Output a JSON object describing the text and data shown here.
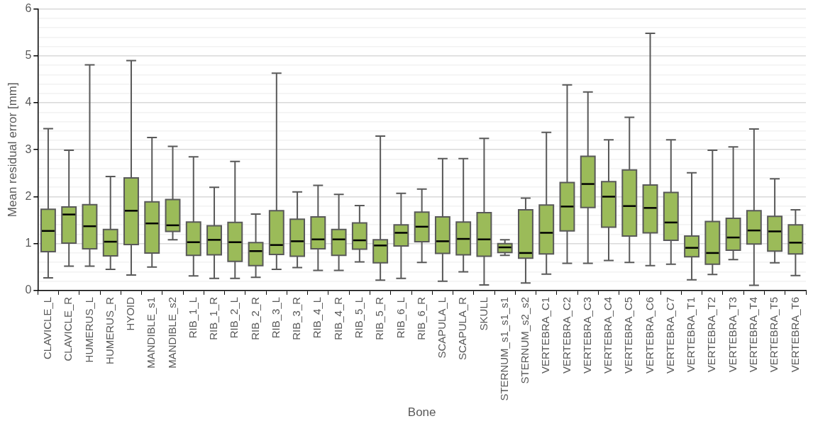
{
  "chart_data": {
    "type": "box",
    "xlabel": "Bone",
    "ylabel": "Mean residual error [mm]",
    "color": "#9bbb59",
    "categories": [
      "CLAVICLE_L",
      "CLAVICLE_R",
      "HUMERUS_L",
      "HUMERUS_R",
      "HYOID",
      "MANDIBLE_s1",
      "MANDIBLE_s2",
      "RIB_1_L",
      "RIB_1_R",
      "RIB_2_L",
      "RIB_2_R",
      "RIB_3_L",
      "RIB_3_R",
      "RIB_4_L",
      "RIB_4_R",
      "RIB_5_L",
      "RIB_5_R",
      "RIB_6_L",
      "RIB_6_R",
      "SCAPULA_L",
      "SCAPULA_R",
      "SKULL",
      "STERNUM_s1_s1_s1",
      "STERNUM_s2_s2",
      "VERTEBRA_C1",
      "VERTEBRA_C2",
      "VERTEBRA_C3",
      "VERTEBRA_C4",
      "VERTEBRA_C5",
      "VERTEBRA_C6",
      "VERTEBRA_C7",
      "VERTEBRA_T1",
      "VERTEBRA_T2",
      "VERTEBRA_T3",
      "VERTEBRA_T4",
      "VERTEBRA_T5",
      "VERTEBRA_T6"
    ],
    "boxes": [
      {
        "low": 0.27,
        "q1": 0.83,
        "median": 1.27,
        "q3": 1.73,
        "high": 3.45
      },
      {
        "low": 0.52,
        "q1": 1.01,
        "median": 1.62,
        "q3": 1.78,
        "high": 2.99
      },
      {
        "low": 0.52,
        "q1": 0.89,
        "median": 1.37,
        "q3": 1.83,
        "high": 4.81
      },
      {
        "low": 0.45,
        "q1": 0.74,
        "median": 1.04,
        "q3": 1.3,
        "high": 2.43
      },
      {
        "low": 0.33,
        "q1": 0.98,
        "median": 1.7,
        "q3": 2.4,
        "high": 4.9
      },
      {
        "low": 0.5,
        "q1": 0.8,
        "median": 1.43,
        "q3": 1.89,
        "high": 3.26
      },
      {
        "low": 1.08,
        "q1": 1.26,
        "median": 1.39,
        "q3": 1.94,
        "high": 3.07
      },
      {
        "low": 0.31,
        "q1": 0.75,
        "median": 1.03,
        "q3": 1.46,
        "high": 2.85
      },
      {
        "low": 0.26,
        "q1": 0.76,
        "median": 1.08,
        "q3": 1.38,
        "high": 2.2
      },
      {
        "low": 0.26,
        "q1": 0.62,
        "median": 1.03,
        "q3": 1.45,
        "high": 2.75
      },
      {
        "low": 0.28,
        "q1": 0.53,
        "median": 0.84,
        "q3": 1.02,
        "high": 1.63
      },
      {
        "low": 0.45,
        "q1": 0.77,
        "median": 0.97,
        "q3": 1.7,
        "high": 4.63
      },
      {
        "low": 0.49,
        "q1": 0.73,
        "median": 1.05,
        "q3": 1.52,
        "high": 2.1
      },
      {
        "low": 0.43,
        "q1": 0.89,
        "median": 1.09,
        "q3": 1.57,
        "high": 2.24
      },
      {
        "low": 0.43,
        "q1": 0.75,
        "median": 1.09,
        "q3": 1.3,
        "high": 2.05
      },
      {
        "low": 0.61,
        "q1": 0.88,
        "median": 1.07,
        "q3": 1.44,
        "high": 1.81
      },
      {
        "low": 0.22,
        "q1": 0.59,
        "median": 0.96,
        "q3": 1.08,
        "high": 3.29
      },
      {
        "low": 0.26,
        "q1": 0.95,
        "median": 1.23,
        "q3": 1.4,
        "high": 2.07
      },
      {
        "low": 0.6,
        "q1": 1.04,
        "median": 1.36,
        "q3": 1.67,
        "high": 2.16
      },
      {
        "low": 0.2,
        "q1": 0.79,
        "median": 1.05,
        "q3": 1.57,
        "high": 2.81
      },
      {
        "low": 0.4,
        "q1": 0.76,
        "median": 1.1,
        "q3": 1.46,
        "high": 2.81
      },
      {
        "low": 0.12,
        "q1": 0.73,
        "median": 1.09,
        "q3": 1.66,
        "high": 3.24
      },
      {
        "low": 0.75,
        "q1": 0.81,
        "median": 0.92,
        "q3": 1.0,
        "high": 1.08
      },
      {
        "low": 0.16,
        "q1": 0.69,
        "median": 0.8,
        "q3": 1.72,
        "high": 1.97
      },
      {
        "low": 0.35,
        "q1": 0.78,
        "median": 1.23,
        "q3": 1.82,
        "high": 3.37
      },
      {
        "low": 0.58,
        "q1": 1.27,
        "median": 1.79,
        "q3": 2.3,
        "high": 4.38
      },
      {
        "low": 0.58,
        "q1": 1.77,
        "median": 2.27,
        "q3": 2.86,
        "high": 4.23
      },
      {
        "low": 0.64,
        "q1": 1.35,
        "median": 2.0,
        "q3": 2.32,
        "high": 3.21
      },
      {
        "low": 0.6,
        "q1": 1.16,
        "median": 1.8,
        "q3": 2.57,
        "high": 3.69
      },
      {
        "low": 0.53,
        "q1": 1.23,
        "median": 1.76,
        "q3": 2.25,
        "high": 5.48
      },
      {
        "low": 0.56,
        "q1": 1.07,
        "median": 1.45,
        "q3": 2.09,
        "high": 3.21
      },
      {
        "low": 0.23,
        "q1": 0.72,
        "median": 0.91,
        "q3": 1.16,
        "high": 2.51
      },
      {
        "low": 0.34,
        "q1": 0.56,
        "median": 0.8,
        "q3": 1.47,
        "high": 2.99
      },
      {
        "low": 0.66,
        "q1": 0.86,
        "median": 1.13,
        "q3": 1.54,
        "high": 3.06
      },
      {
        "low": 0.11,
        "q1": 0.99,
        "median": 1.28,
        "q3": 1.7,
        "high": 3.44
      },
      {
        "low": 0.59,
        "q1": 0.84,
        "median": 1.26,
        "q3": 1.58,
        "high": 2.38
      },
      {
        "low": 0.32,
        "q1": 0.78,
        "median": 1.02,
        "q3": 1.4,
        "high": 1.72
      }
    ],
    "ylim": [
      0,
      6
    ],
    "yticks": [
      0,
      {
        "value": 0.2,
        "label": null
      },
      {
        "value": 0.4,
        "label": null
      },
      {
        "value": 0.6,
        "label": null
      },
      {
        "value": 0.8,
        "label": null
      },
      1,
      {
        "value": 1.2,
        "label": null
      },
      {
        "value": 1.4,
        "label": null
      },
      {
        "value": 1.6,
        "label": null
      },
      {
        "value": 1.8,
        "label": null
      },
      2,
      {
        "value": 2.2,
        "label": null
      },
      {
        "value": 2.4,
        "label": null
      },
      {
        "value": 2.6,
        "label": null
      },
      {
        "value": 2.8,
        "label": null
      },
      3,
      {
        "value": 3.2,
        "label": null
      },
      {
        "value": 3.4,
        "label": null
      },
      {
        "value": 3.6,
        "label": null
      },
      {
        "value": 3.8,
        "label": null
      },
      4,
      {
        "value": 4.2,
        "label": null
      },
      {
        "value": 4.4,
        "label": null
      },
      {
        "value": 4.6,
        "label": null
      },
      {
        "value": 4.8,
        "label": null
      },
      5,
      {
        "value": 5.2,
        "label": null
      },
      {
        "value": 5.4,
        "label": null
      },
      {
        "value": 5.6,
        "label": null
      },
      {
        "value": 5.8,
        "label": null
      },
      6
    ],
    "grid": "y"
  }
}
